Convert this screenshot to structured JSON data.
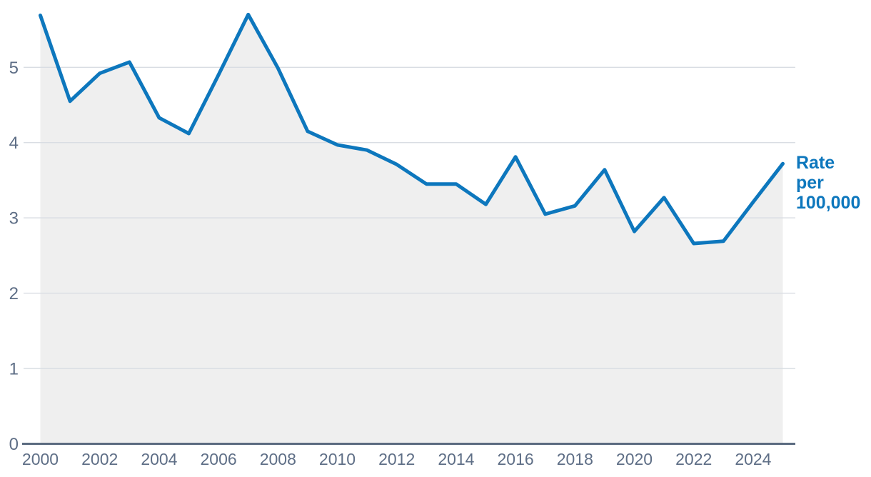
{
  "chart_data": {
    "type": "area",
    "title": "",
    "xlabel": "",
    "ylabel": "",
    "series_name": "Rate per 100,000",
    "x": [
      2000,
      2001,
      2002,
      2003,
      2004,
      2005,
      2006,
      2007,
      2008,
      2009,
      2010,
      2011,
      2012,
      2013,
      2014,
      2015,
      2016,
      2017,
      2018,
      2019,
      2020,
      2021,
      2022,
      2023,
      2024,
      2025
    ],
    "values": [
      5.69,
      4.55,
      4.92,
      5.07,
      4.33,
      4.12,
      4.9,
      5.7,
      4.99,
      4.15,
      3.97,
      3.9,
      3.71,
      3.45,
      3.45,
      3.18,
      3.81,
      3.05,
      3.16,
      3.64,
      2.82,
      3.27,
      2.66,
      2.69,
      3.21,
      3.72
    ],
    "xlim": [
      2000,
      2025
    ],
    "ylim": [
      0,
      5.9
    ],
    "x_ticks": [
      2000,
      2002,
      2004,
      2006,
      2008,
      2010,
      2012,
      2014,
      2016,
      2018,
      2020,
      2022,
      2024
    ],
    "y_ticks": [
      0,
      1,
      2,
      3,
      4,
      5
    ],
    "grid": "horizontal-only",
    "legend_position": "right-of-line-end",
    "annotation": {
      "lines": [
        "Rate",
        "per",
        "100,000"
      ]
    },
    "colors": {
      "line": "#0d77bd",
      "area_fill": "#efefef",
      "gridline": "#d9dde3",
      "axis": "#5b6b80",
      "tick_label": "#5e6e86",
      "annotation_text": "#0d77bd",
      "background": "#ffffff"
    }
  }
}
